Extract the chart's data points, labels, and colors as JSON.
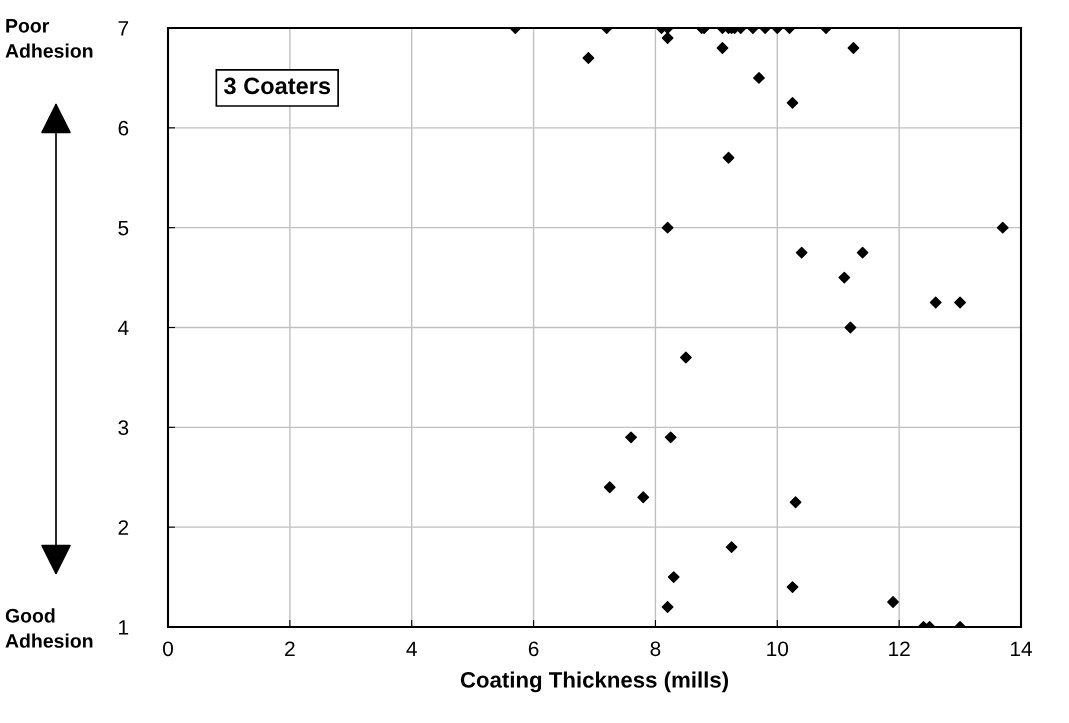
{
  "chart_data": {
    "type": "scatter",
    "xlabel": "Coating Thickness (mills)",
    "annotations": [
      "3 Coaters",
      "Poor\nAdhesion",
      "Good\nAdhesion"
    ],
    "x": [
      5.7,
      7.2,
      8.1,
      8.2,
      8.76,
      8.8,
      9.1,
      9.2,
      9.25,
      9.3,
      9.4,
      9.6,
      9.8,
      10.0,
      10.2,
      10.8,
      8.2,
      6.9,
      9.1,
      9.7,
      10.25,
      11.25,
      9.2,
      8.2,
      10.4,
      11.4,
      11.1,
      12.6,
      13.0,
      11.2,
      8.5,
      13.7,
      7.6,
      8.25,
      7.25,
      7.8,
      10.3,
      9.25,
      8.3,
      8.2,
      10.25,
      11.9,
      12.4,
      12.5,
      13.0
    ],
    "series": [
      {
        "color": "#000000",
        "values": [
          7,
          7,
          7,
          7,
          7,
          7,
          7,
          7,
          7,
          7,
          7,
          7,
          7,
          7,
          7,
          7,
          6.9,
          6.7,
          6.8,
          6.5,
          6.25,
          6.8,
          5.7,
          5.0,
          4.75,
          4.75,
          4.5,
          4.25,
          4.25,
          4.0,
          3.7,
          5.0,
          2.9,
          2.9,
          2.4,
          2.3,
          2.25,
          1.8,
          1.5,
          1.2,
          1.4,
          1.25,
          1.0,
          1.0,
          1.0
        ]
      }
    ],
    "xlim": [
      0,
      14
    ],
    "ylim": [
      1,
      7
    ],
    "xticks": [
      0,
      2,
      4,
      6,
      8,
      10,
      12,
      14
    ],
    "yticks": [
      1,
      2,
      3,
      4,
      5,
      6,
      7
    ],
    "grid": true,
    "marker": "diamond"
  }
}
